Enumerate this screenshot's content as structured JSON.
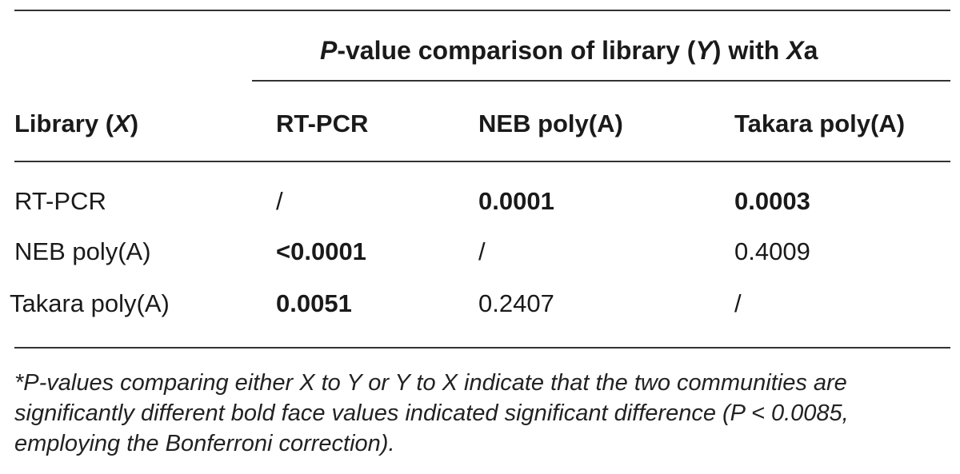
{
  "table": {
    "spanner": {
      "p": "P",
      "title_a": "-value comparison of library (",
      "y": "Y",
      "title_b": ") with ",
      "x": "X",
      "suffix": "a"
    },
    "headers": {
      "library_prefix": "Library (",
      "library_x": "X",
      "library_suffix": ")",
      "col1": "RT-PCR",
      "col2": "NEB poly(A)",
      "col3": "Takara poly(A)"
    },
    "rows": [
      {
        "label": "RT-PCR",
        "c1": "/",
        "c2": "0.0001",
        "c3": "0.0003"
      },
      {
        "label": "NEB poly(A)",
        "c1": "<0.0001",
        "c2": "/",
        "c3": "0.4009"
      },
      {
        "label": "Takara poly(A)",
        "c1": "0.0051",
        "c2": "0.2407",
        "c3": "/"
      }
    ]
  },
  "footnote": "*P-values comparing either X to Y or Y to X indicate that the two communities are significantly different bold face values indicated significant difference (P < 0.0085, employing the Bonferroni correction)."
}
